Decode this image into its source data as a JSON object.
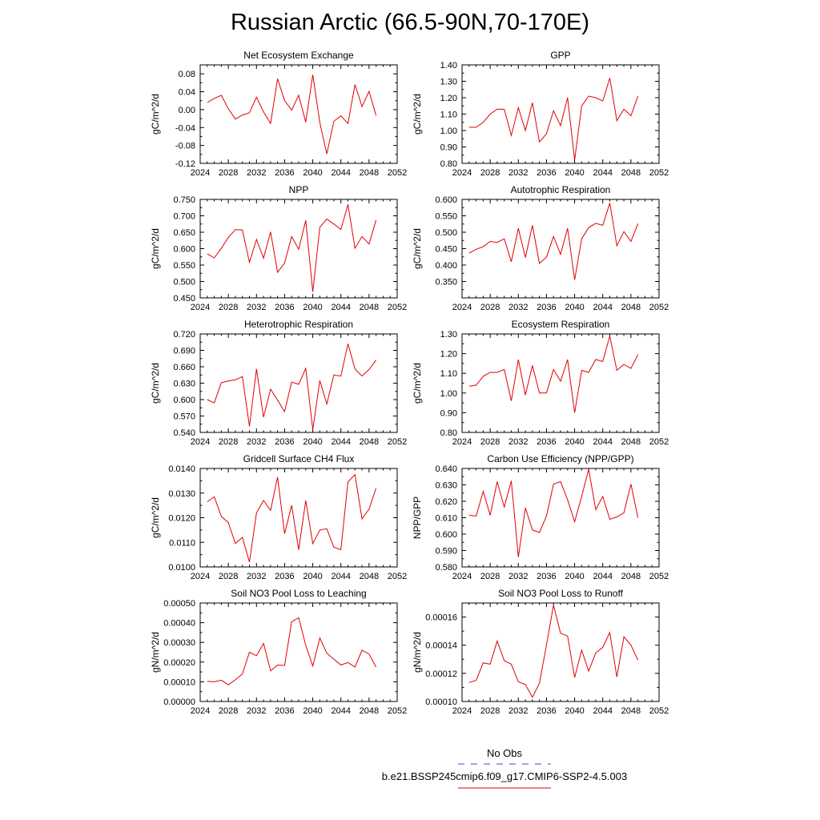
{
  "title": "Russian Arctic (66.5-90N,70-170E)",
  "legend": {
    "obs_label": "No Obs",
    "obs_color": "#4444cc",
    "run_label": "b.e21.BSSP245cmip6.f09_g17.CMIP6-SSP2-4.5.003",
    "run_color": "#e00000"
  },
  "chart_data": [
    {
      "type": "line",
      "title": "Net Ecosystem Exchange",
      "ylabel": "gC/m^2/d",
      "xlim": [
        2024,
        2052
      ],
      "ylim": [
        -0.12,
        0.1
      ],
      "xticks": [
        2024,
        2028,
        2032,
        2036,
        2040,
        2044,
        2048,
        2052
      ],
      "yticks": [
        "-0.12",
        "-0.08",
        "-0.04",
        "0.00",
        "0.04",
        "0.08"
      ],
      "x": [
        2025,
        2026,
        2027,
        2028,
        2029,
        2030,
        2031,
        2032,
        2033,
        2034,
        2035,
        2036,
        2037,
        2038,
        2039,
        2040,
        2041,
        2042,
        2043,
        2044,
        2045,
        2046,
        2047,
        2048,
        2049
      ],
      "y": [
        0.016,
        0.025,
        0.032,
        0.002,
        -0.021,
        -0.012,
        -0.007,
        0.028,
        -0.005,
        -0.031,
        0.069,
        0.02,
        -0.001,
        0.032,
        -0.028,
        0.078,
        -0.029,
        -0.099,
        -0.026,
        -0.014,
        -0.031,
        0.056,
        0.007,
        0.041,
        -0.013
      ]
    },
    {
      "type": "line",
      "title": "GPP",
      "ylabel": "gC/m^2/d",
      "xlim": [
        2024,
        2052
      ],
      "ylim": [
        0.8,
        1.4
      ],
      "xticks": [
        2024,
        2028,
        2032,
        2036,
        2040,
        2044,
        2048,
        2052
      ],
      "yticks": [
        "0.80",
        "0.90",
        "1.00",
        "1.10",
        "1.20",
        "1.30",
        "1.40"
      ],
      "x": [
        2025,
        2026,
        2027,
        2028,
        2029,
        2030,
        2031,
        2032,
        2033,
        2034,
        2035,
        2036,
        2037,
        2038,
        2039,
        2040,
        2041,
        2042,
        2043,
        2044,
        2045,
        2046,
        2047,
        2048,
        2049
      ],
      "y": [
        1.02,
        1.02,
        1.05,
        1.1,
        1.13,
        1.13,
        0.97,
        1.14,
        1.0,
        1.17,
        0.93,
        0.98,
        1.12,
        1.03,
        1.2,
        0.82,
        1.15,
        1.21,
        1.2,
        1.18,
        1.32,
        1.06,
        1.13,
        1.09,
        1.21
      ]
    },
    {
      "type": "line",
      "title": "NPP",
      "ylabel": "gC/m^2/d",
      "xlim": [
        2024,
        2052
      ],
      "ylim": [
        0.45,
        0.75
      ],
      "xticks": [
        2024,
        2028,
        2032,
        2036,
        2040,
        2044,
        2048,
        2052
      ],
      "yticks": [
        "0.450",
        "0.500",
        "0.550",
        "0.600",
        "0.650",
        "0.700",
        "0.750"
      ],
      "x": [
        2025,
        2026,
        2027,
        2028,
        2029,
        2030,
        2031,
        2032,
        2033,
        2034,
        2035,
        2036,
        2037,
        2038,
        2039,
        2040,
        2041,
        2042,
        2043,
        2044,
        2045,
        2046,
        2047,
        2048,
        2049
      ],
      "y": [
        0.584,
        0.572,
        0.601,
        0.634,
        0.658,
        0.657,
        0.558,
        0.628,
        0.571,
        0.651,
        0.528,
        0.556,
        0.637,
        0.598,
        0.686,
        0.468,
        0.665,
        0.69,
        0.675,
        0.658,
        0.735,
        0.601,
        0.637,
        0.614,
        0.687
      ]
    },
    {
      "type": "line",
      "title": "Autotrophic Respiration",
      "ylabel": "gC/m^2/d",
      "xlim": [
        2024,
        2052
      ],
      "ylim": [
        0.3,
        0.6
      ],
      "xticks": [
        2024,
        2028,
        2032,
        2036,
        2040,
        2044,
        2048,
        2052
      ],
      "yticks": [
        "0.350",
        "0.400",
        "0.450",
        "0.500",
        "0.550",
        "0.600"
      ],
      "x": [
        2025,
        2026,
        2027,
        2028,
        2029,
        2030,
        2031,
        2032,
        2033,
        2034,
        2035,
        2036,
        2037,
        2038,
        2039,
        2040,
        2041,
        2042,
        2043,
        2044,
        2045,
        2046,
        2047,
        2048,
        2049
      ],
      "y": [
        0.436,
        0.448,
        0.456,
        0.472,
        0.469,
        0.48,
        0.41,
        0.512,
        0.423,
        0.521,
        0.405,
        0.424,
        0.487,
        0.433,
        0.512,
        0.355,
        0.48,
        0.514,
        0.527,
        0.521,
        0.589,
        0.459,
        0.502,
        0.472,
        0.526
      ]
    },
    {
      "type": "line",
      "title": "Heterotrophic Respiration",
      "ylabel": "gC/m^2/d",
      "xlim": [
        2024,
        2052
      ],
      "ylim": [
        0.54,
        0.72
      ],
      "xticks": [
        2024,
        2028,
        2032,
        2036,
        2040,
        2044,
        2048,
        2052
      ],
      "yticks": [
        "0.540",
        "0.570",
        "0.600",
        "0.630",
        "0.660",
        "0.690",
        "0.720"
      ],
      "x": [
        2025,
        2026,
        2027,
        2028,
        2029,
        2030,
        2031,
        2032,
        2033,
        2034,
        2035,
        2036,
        2037,
        2038,
        2039,
        2040,
        2041,
        2042,
        2043,
        2044,
        2045,
        2046,
        2047,
        2048,
        2049
      ],
      "y": [
        0.6,
        0.594,
        0.631,
        0.634,
        0.636,
        0.642,
        0.551,
        0.656,
        0.568,
        0.619,
        0.599,
        0.578,
        0.632,
        0.628,
        0.657,
        0.545,
        0.635,
        0.592,
        0.645,
        0.643,
        0.702,
        0.656,
        0.643,
        0.655,
        0.672
      ]
    },
    {
      "type": "line",
      "title": "Ecosystem Respiration",
      "ylabel": "gC/m^2/d",
      "xlim": [
        2024,
        2052
      ],
      "ylim": [
        0.8,
        1.3
      ],
      "xticks": [
        2024,
        2028,
        2032,
        2036,
        2040,
        2044,
        2048,
        2052
      ],
      "yticks": [
        "0.80",
        "0.90",
        "1.00",
        "1.10",
        "1.20",
        "1.30"
      ],
      "x": [
        2025,
        2026,
        2027,
        2028,
        2029,
        2030,
        2031,
        2032,
        2033,
        2034,
        2035,
        2036,
        2037,
        2038,
        2039,
        2040,
        2041,
        2042,
        2043,
        2044,
        2045,
        2046,
        2047,
        2048,
        2049
      ],
      "y": [
        1.035,
        1.04,
        1.085,
        1.105,
        1.105,
        1.12,
        0.96,
        1.17,
        0.99,
        1.14,
        1.0,
        1.0,
        1.12,
        1.06,
        1.17,
        0.9,
        1.115,
        1.105,
        1.17,
        1.16,
        1.29,
        1.115,
        1.145,
        1.125,
        1.195
      ]
    },
    {
      "type": "line",
      "title": "Gridcell Surface CH4 Flux",
      "ylabel": "gC/m^2/d",
      "xlim": [
        2024,
        2052
      ],
      "ylim": [
        0.01,
        0.014
      ],
      "xticks": [
        2024,
        2028,
        2032,
        2036,
        2040,
        2044,
        2048,
        2052
      ],
      "yticks": [
        "0.0100",
        "0.0110",
        "0.0120",
        "0.0130",
        "0.0140"
      ],
      "x": [
        2025,
        2026,
        2027,
        2028,
        2029,
        2030,
        2031,
        2032,
        2033,
        2034,
        2035,
        2036,
        2037,
        2038,
        2039,
        2040,
        2041,
        2042,
        2043,
        2044,
        2045,
        2046,
        2047,
        2048,
        2049
      ],
      "y": [
        0.01265,
        0.01285,
        0.01205,
        0.0118,
        0.01095,
        0.0112,
        0.0102,
        0.0122,
        0.0127,
        0.0123,
        0.01365,
        0.01135,
        0.0125,
        0.0107,
        0.0127,
        0.01095,
        0.0115,
        0.01155,
        0.0108,
        0.0107,
        0.01345,
        0.01375,
        0.01195,
        0.01235,
        0.0132
      ]
    },
    {
      "type": "line",
      "title": "Carbon Use Efficiency (NPP/GPP)",
      "ylabel": "NPP/GPP",
      "xlim": [
        2024,
        2052
      ],
      "ylim": [
        0.58,
        0.64
      ],
      "xticks": [
        2024,
        2028,
        2032,
        2036,
        2040,
        2044,
        2048,
        2052
      ],
      "yticks": [
        "0.580",
        "0.590",
        "0.600",
        "0.610",
        "0.620",
        "0.630",
        "0.640"
      ],
      "x": [
        2025,
        2026,
        2027,
        2028,
        2029,
        2030,
        2031,
        2032,
        2033,
        2034,
        2035,
        2036,
        2037,
        2038,
        2039,
        2040,
        2041,
        2042,
        2043,
        2044,
        2045,
        2046,
        2047,
        2048,
        2049
      ],
      "y": [
        0.6115,
        0.611,
        0.626,
        0.6115,
        0.632,
        0.6165,
        0.6325,
        0.586,
        0.616,
        0.6025,
        0.601,
        0.611,
        0.6305,
        0.632,
        0.621,
        0.6075,
        0.623,
        0.6395,
        0.615,
        0.623,
        0.609,
        0.6105,
        0.613,
        0.6305,
        0.61
      ]
    },
    {
      "type": "line",
      "title": "Soil NO3 Pool Loss to Leaching",
      "ylabel": "gN/m^2/d",
      "xlim": [
        2024,
        2052
      ],
      "ylim": [
        0,
        0.0005
      ],
      "xticks": [
        2024,
        2028,
        2032,
        2036,
        2040,
        2044,
        2048,
        2052
      ],
      "yticks": [
        "0.00000",
        "0.00010",
        "0.00020",
        "0.00030",
        "0.00040",
        "0.00050"
      ],
      "x": [
        2025,
        2026,
        2027,
        2028,
        2029,
        2030,
        2031,
        2032,
        2033,
        2034,
        2035,
        2036,
        2037,
        2038,
        2039,
        2040,
        2041,
        2042,
        2043,
        2044,
        2045,
        2046,
        2047,
        2048,
        2049
      ],
      "y": [
        0.000102,
        0.0001,
        0.000108,
        8.5e-05,
        0.00011,
        0.00014,
        0.00025,
        0.000232,
        0.000295,
        0.000155,
        0.000185,
        0.000183,
        0.000405,
        0.000425,
        0.000285,
        0.00018,
        0.000322,
        0.000245,
        0.000215,
        0.000185,
        0.000198,
        0.000175,
        0.00026,
        0.00024,
        0.000175
      ]
    },
    {
      "type": "line",
      "title": "Soil NO3 Pool Loss to Runoff",
      "ylabel": "gN/m^2/d",
      "xlim": [
        2024,
        2052
      ],
      "ylim": [
        0.0001,
        0.00017
      ],
      "xticks": [
        2024,
        2028,
        2032,
        2036,
        2040,
        2044,
        2048,
        2052
      ],
      "yticks": [
        "0.00010",
        "0.00012",
        "0.00014",
        "0.00016"
      ],
      "x": [
        2025,
        2026,
        2027,
        2028,
        2029,
        2030,
        2031,
        2032,
        2033,
        2034,
        2035,
        2036,
        2037,
        2038,
        2039,
        2040,
        2041,
        2042,
        2043,
        2044,
        2045,
        2046,
        2047,
        2048,
        2049
      ],
      "y": [
        0.0001135,
        0.000115,
        0.0001275,
        0.0001265,
        0.000143,
        0.000129,
        0.0001265,
        0.000114,
        0.000112,
        0.000103,
        0.000113,
        0.00014,
        0.0001685,
        0.0001485,
        0.0001465,
        0.000117,
        0.0001365,
        0.0001215,
        0.0001345,
        0.0001385,
        0.000149,
        0.0001175,
        0.000146,
        0.00014,
        0.0001295
      ]
    }
  ]
}
